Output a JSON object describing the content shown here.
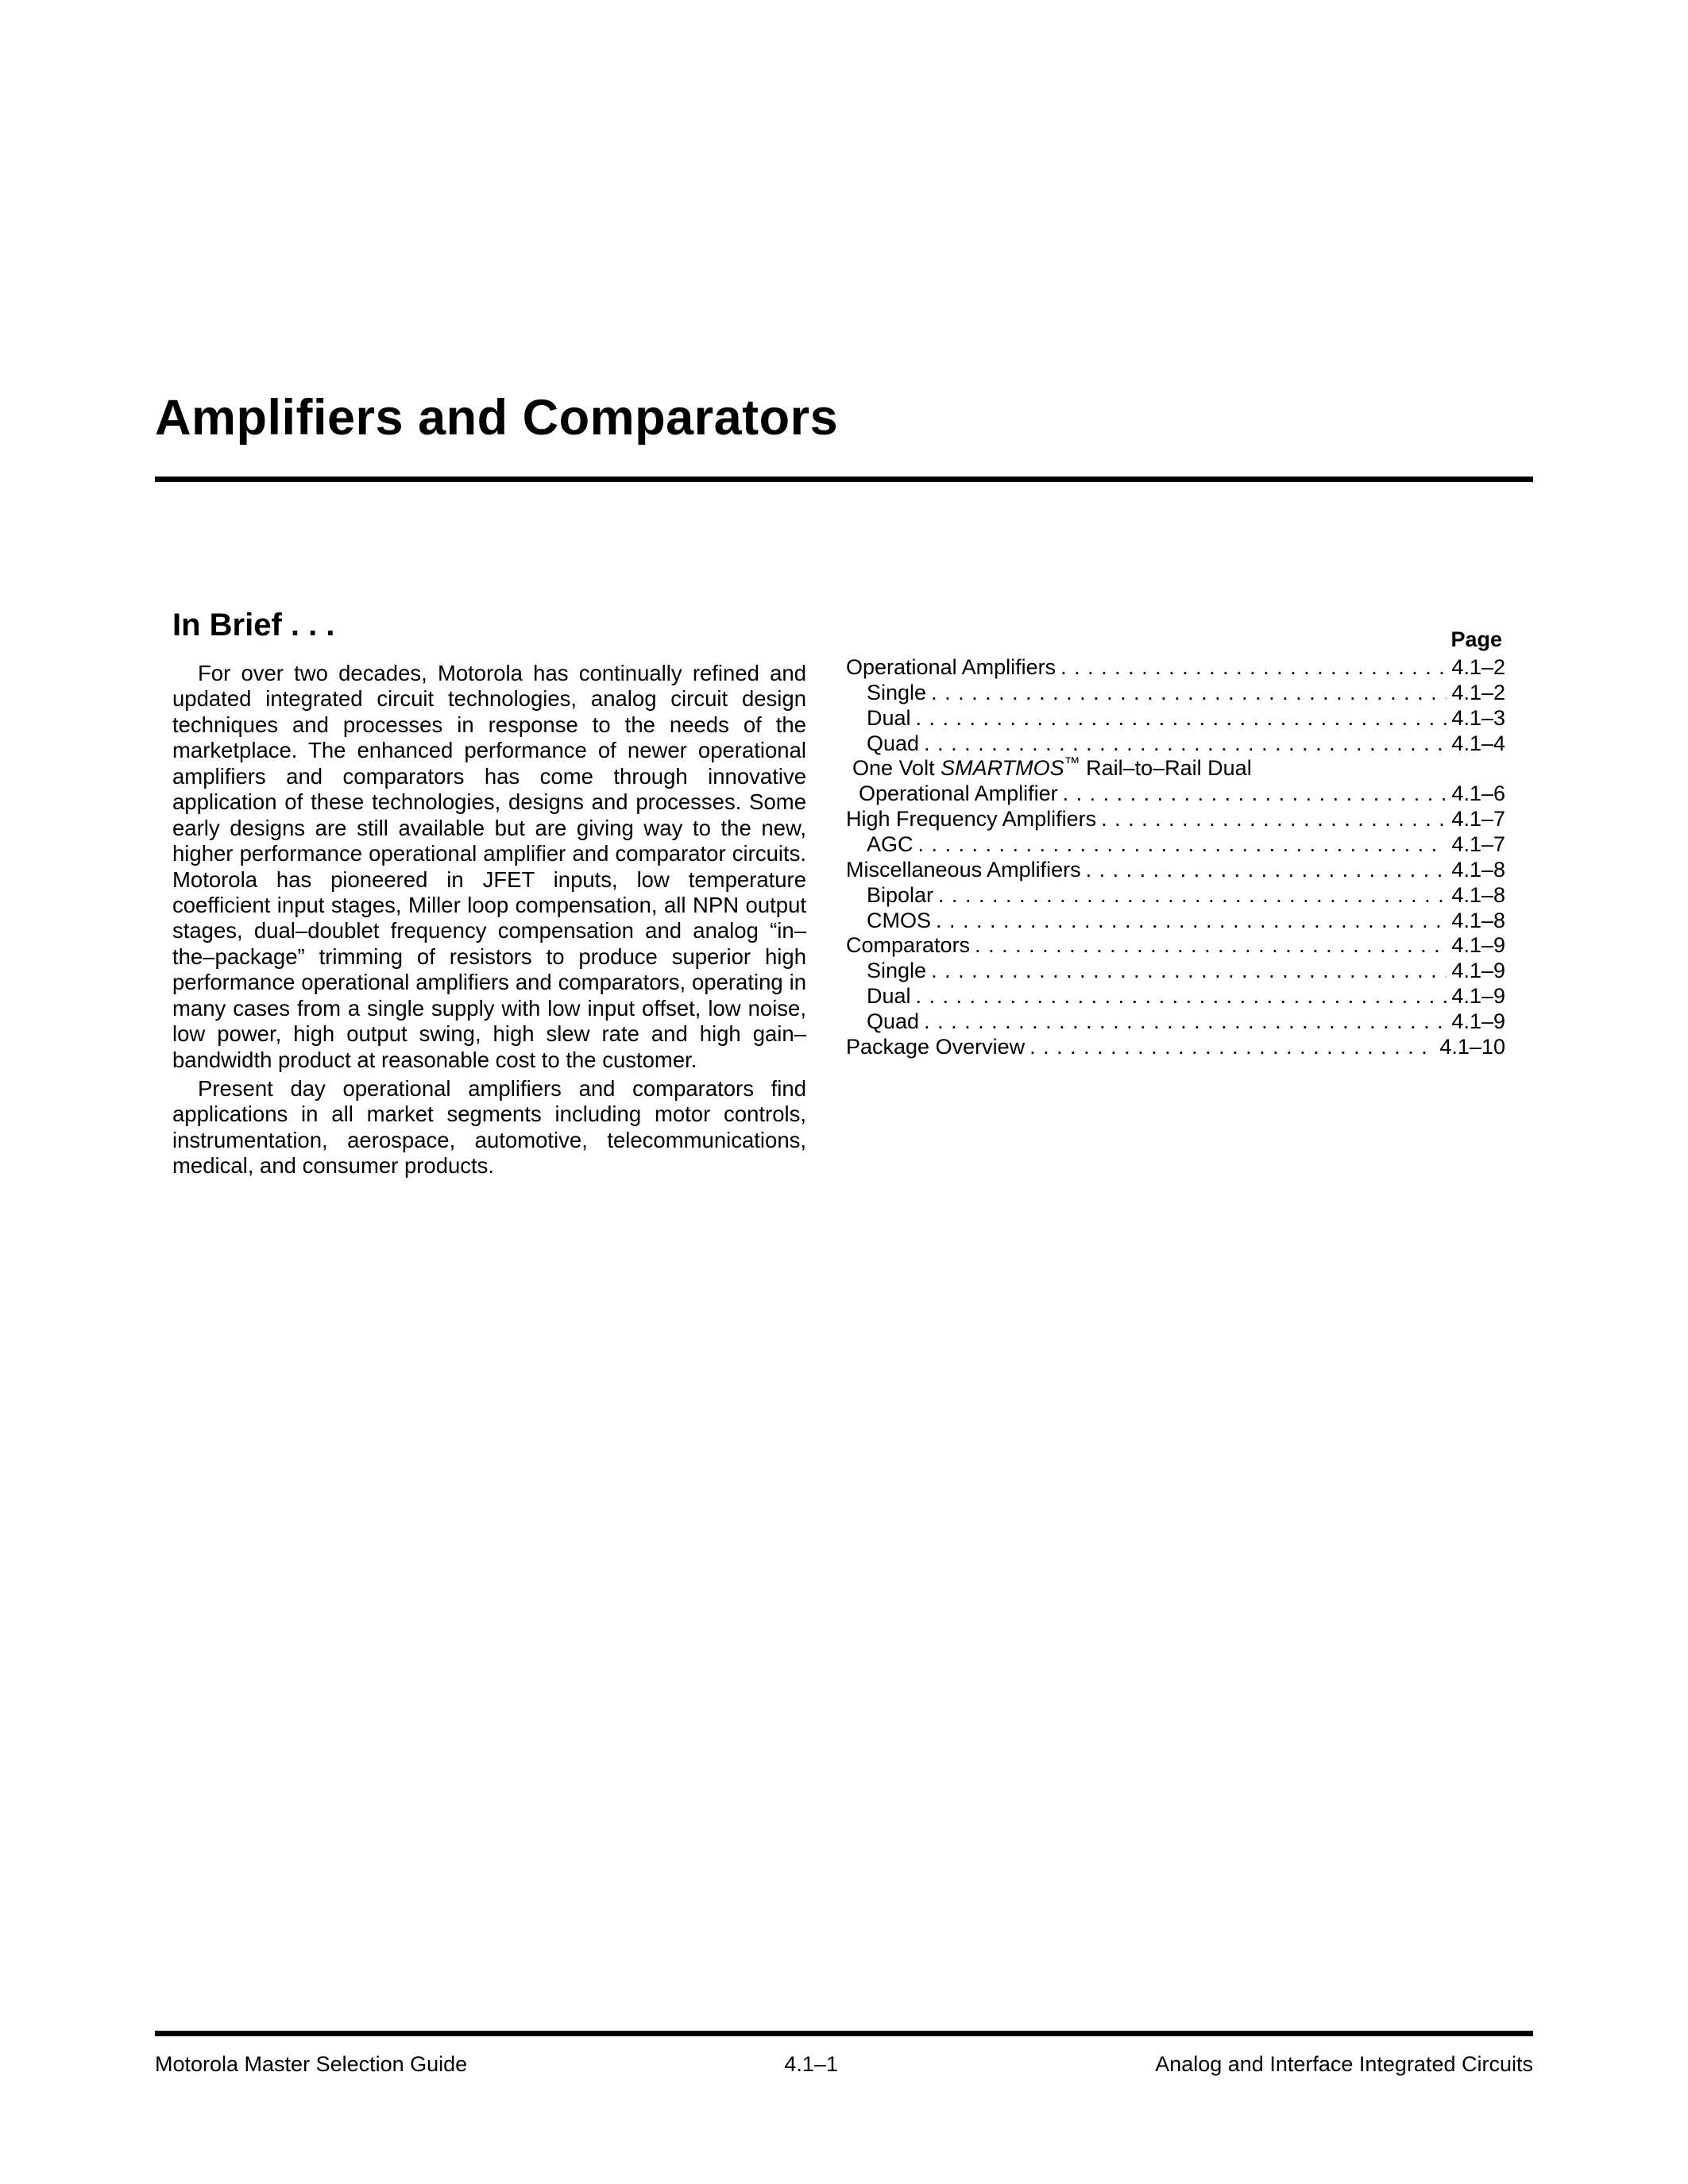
{
  "title": "Amplifiers and Comparators",
  "subheading": "In Brief . . .",
  "paragraphs": [
    "For over two decades, Motorola has continually refined and updated integrated circuit technologies, analog circuit design techniques and processes in response to the needs of the marketplace. The enhanced performance of newer operational amplifiers and comparators has come through innovative application of these technologies, designs and processes. Some early designs are still available but are giving way to the new, higher performance operational amplifier and comparator circuits. Motorola has pioneered in JFET inputs, low temperature coefficient input stages, Miller loop compensation, all NPN output stages, dual–doublet frequency compensation and analog “in–the–package” trimming of resistors to produce superior high performance operational amplifiers and comparators, operating in many cases from a single supply with low input offset, low noise, low power, high output swing, high slew rate and high gain–bandwidth product at reasonable cost to the customer.",
    "Present day operational amplifiers and comparators find applications in all market segments including motor controls, instrumentation, aerospace, automotive, telecommunications, medical, and consumer products."
  ],
  "page_label": "Page",
  "dots": ". . . . . . . . . . . . . . . . . . . . . . . . . . . . . . . . . . . . . . . . . . . . . . . . . . . . . . . . . . . . . . . . . . . . . . . .",
  "toc": [
    {
      "label": "Operational Amplifiers",
      "page": "4.1–2",
      "indent": 0
    },
    {
      "label": "Single",
      "page": "4.1–2",
      "indent": 1
    },
    {
      "label": "Dual",
      "page": "4.1–3",
      "indent": 1
    },
    {
      "label": "Quad",
      "page": "4.1–4",
      "indent": 1
    },
    {
      "label_prefix": "One Volt ",
      "label_italic": "SMARTMOS",
      "label_tm": "™",
      "label_suffix": " Rail–to–Rail Dual",
      "wrap_label": "Operational Amplifier",
      "page": "4.1–6",
      "indent": 0
    },
    {
      "label": "High Frequency Amplifiers",
      "page": "4.1–7",
      "indent": 0
    },
    {
      "label": "AGC",
      "page": "4.1–7",
      "indent": 1
    },
    {
      "label": "Miscellaneous Amplifiers",
      "page": "4.1–8",
      "indent": 0
    },
    {
      "label": "Bipolar",
      "page": "4.1–8",
      "indent": 1
    },
    {
      "label": "CMOS",
      "page": "4.1–8",
      "indent": 1
    },
    {
      "label": "Comparators",
      "page": "4.1–9",
      "indent": 0
    },
    {
      "label": "Single",
      "page": "4.1–9",
      "indent": 1
    },
    {
      "label": "Dual",
      "page": "4.1–9",
      "indent": 1
    },
    {
      "label": "Quad",
      "page": "4.1–9",
      "indent": 1
    },
    {
      "label": "Package Overview",
      "page": "4.1–10",
      "indent": 0
    }
  ],
  "footer": {
    "left": "Motorola Master Selection Guide",
    "center": "4.1–1",
    "right": "Analog and Interface Integrated Circuits"
  }
}
